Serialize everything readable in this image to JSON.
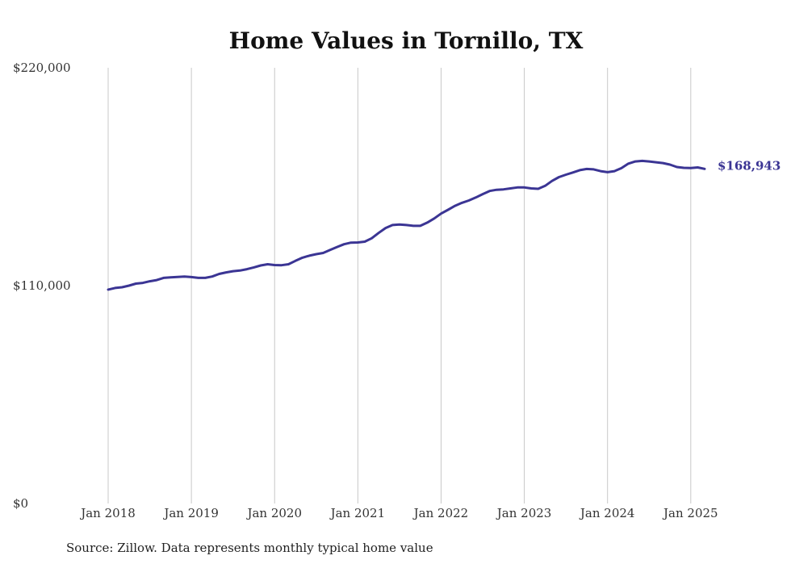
{
  "chart_data": {
    "type": "line",
    "title": "Home Values in Tornillo, TX",
    "xlabel": "",
    "ylabel": "",
    "ylim": [
      0,
      220000
    ],
    "y_ticks": [
      {
        "value": 220000,
        "label": "$220,000"
      },
      {
        "value": 110000,
        "label": "$110,000"
      },
      {
        "value": 0,
        "label": "$0"
      }
    ],
    "x_ticks": [
      {
        "value": "2018-01",
        "label": "Jan 2018"
      },
      {
        "value": "2019-01",
        "label": "Jan 2019"
      },
      {
        "value": "2020-01",
        "label": "Jan 2020"
      },
      {
        "value": "2021-01",
        "label": "Jan 2021"
      },
      {
        "value": "2022-01",
        "label": "Jan 2022"
      },
      {
        "value": "2023-01",
        "label": "Jan 2023"
      },
      {
        "value": "2024-01",
        "label": "Jan 2024"
      },
      {
        "value": "2025-01",
        "label": "Jan 2025"
      }
    ],
    "xlim": [
      "2018-01",
      "2025-03"
    ],
    "grid": "vertical",
    "line_color": "#3b3594",
    "series": [
      {
        "x": [
          "2018-01",
          "2018-02",
          "2018-03",
          "2018-04",
          "2018-05",
          "2018-06",
          "2018-07",
          "2018-08",
          "2018-09",
          "2018-10",
          "2018-11",
          "2018-12",
          "2019-01",
          "2019-02",
          "2019-03",
          "2019-04",
          "2019-05",
          "2019-06",
          "2019-07",
          "2019-08",
          "2019-09",
          "2019-10",
          "2019-11",
          "2019-12",
          "2020-01",
          "2020-02",
          "2020-03",
          "2020-04",
          "2020-05",
          "2020-06",
          "2020-07",
          "2020-08",
          "2020-09",
          "2020-10",
          "2020-11",
          "2020-12",
          "2021-01",
          "2021-02",
          "2021-03",
          "2021-04",
          "2021-05",
          "2021-06",
          "2021-07",
          "2021-08",
          "2021-09",
          "2021-10",
          "2021-11",
          "2021-12",
          "2022-01",
          "2022-02",
          "2022-03",
          "2022-04",
          "2022-05",
          "2022-06",
          "2022-07",
          "2022-08",
          "2022-09",
          "2022-10",
          "2022-11",
          "2022-12",
          "2023-01",
          "2023-02",
          "2023-03",
          "2023-04",
          "2023-05",
          "2023-06",
          "2023-07",
          "2023-08",
          "2023-09",
          "2023-10",
          "2023-11",
          "2023-12",
          "2024-01",
          "2024-02",
          "2024-03",
          "2024-04",
          "2024-05",
          "2024-06",
          "2024-07",
          "2024-08",
          "2024-09",
          "2024-10",
          "2024-11",
          "2024-12",
          "2025-01",
          "2025-02",
          "2025-03"
        ],
        "values": [
          108000,
          108800,
          109200,
          110000,
          111000,
          111400,
          112200,
          112800,
          113900,
          114200,
          114400,
          114600,
          114300,
          113900,
          113900,
          114600,
          115900,
          116700,
          117300,
          117600,
          118300,
          119200,
          120200,
          120800,
          120400,
          120300,
          120800,
          122500,
          124100,
          125100,
          125900,
          126500,
          128000,
          129500,
          130900,
          131700,
          131800,
          132200,
          133900,
          136600,
          139100,
          140600,
          140900,
          140600,
          140200,
          140200,
          141800,
          143900,
          146400,
          148300,
          150300,
          151800,
          153000,
          154500,
          156200,
          157800,
          158400,
          158600,
          159100,
          159600,
          159600,
          159100,
          158900,
          160400,
          162900,
          164800,
          166000,
          167100,
          168300,
          168900,
          168700,
          167800,
          167300,
          167800,
          169300,
          171600,
          172700,
          173000,
          172700,
          172300,
          171900,
          171100,
          169900,
          169500,
          169400,
          169700,
          168943
        ],
        "end_label": "$168,943"
      }
    ]
  },
  "footer": {
    "source": "Source: Zillow. Data represents monthly typical home value"
  }
}
